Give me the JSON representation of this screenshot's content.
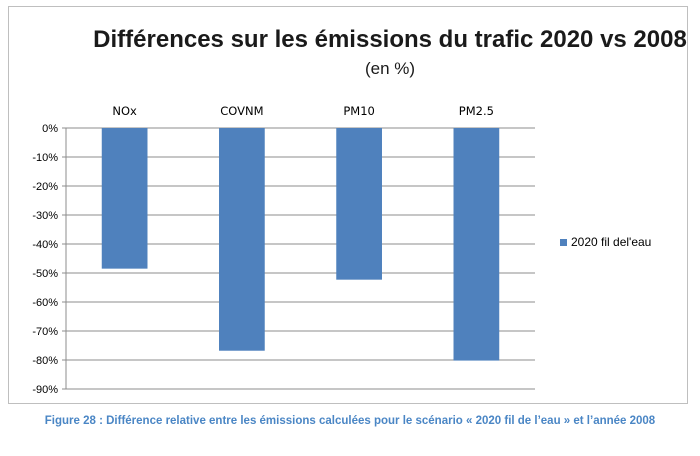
{
  "chart_data": {
    "type": "bar",
    "title": "Différences sur les émissions du trafic 2020 vs 2008",
    "subtitle": "(en %)",
    "categories": [
      "NOx",
      "COVNM",
      "PM10",
      "PM2.5"
    ],
    "series": [
      {
        "name": "2020 fil del'eau",
        "values": [
          -48.5,
          -76.8,
          -52.3,
          -80.2
        ]
      }
    ],
    "ylim": [
      -90,
      0
    ],
    "yticks": [
      0,
      -10,
      -20,
      -30,
      -40,
      -50,
      -60,
      -70,
      -80,
      -90
    ],
    "ytick_labels": [
      "0%",
      "-10%",
      "-20%",
      "-30%",
      "-40%",
      "-50%",
      "-60%",
      "-70%",
      "-80%",
      "-90%"
    ],
    "category_axis_position": "top",
    "grid": true,
    "legend_position": "right",
    "bar_color": "#4f81bd"
  },
  "caption": "Figure 28 : Différence relative entre les émissions calculées pour le scénario « 2020 fil de l’eau » et l’année 2008"
}
